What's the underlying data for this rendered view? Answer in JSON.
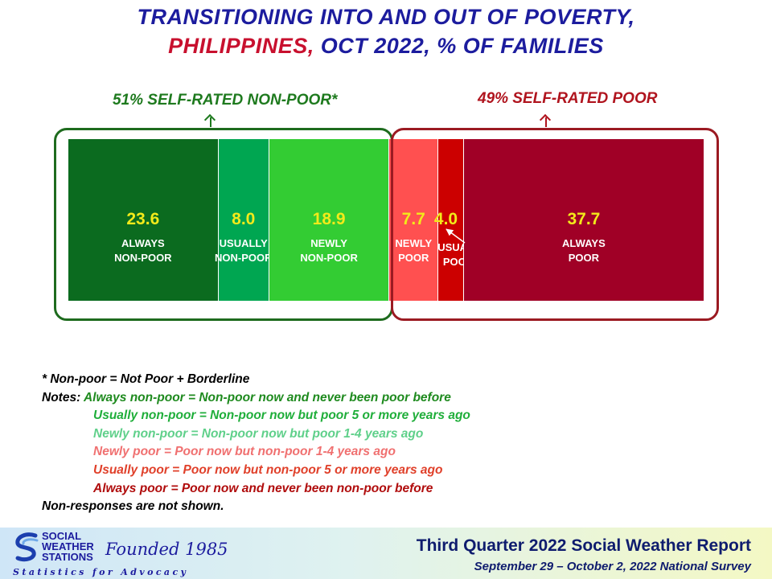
{
  "title": {
    "line1": "TRANSITIONING INTO AND OUT OF POVERTY,",
    "line2_red": "PHILIPPINES,",
    "line2_blue": "OCT 2022, % OF FAMILIES"
  },
  "groups": {
    "nonpoor_label": "51% SELF-RATED NON-POOR*",
    "poor_label": "49% SELF-RATED POOR"
  },
  "chart_data": {
    "type": "bar",
    "orientation": "horizontal-stacked-100",
    "unit": "% of families",
    "segments": [
      {
        "label": "ALWAYS\nNON-POOR",
        "value": 23.6,
        "value_label": "23.6",
        "color": "#0b6b1f"
      },
      {
        "label": "USUALLY\nNON-POOR",
        "value": 8.0,
        "value_label": "8.0",
        "color": "#00a651"
      },
      {
        "label": "NEWLY\nNON-POOR",
        "value": 18.9,
        "value_label": "18.9",
        "color": "#33cc33"
      },
      {
        "label": "NEWLY\nPOOR",
        "value": 7.7,
        "value_label": "7.7",
        "color": "#ff5050"
      },
      {
        "label": "USUALLY\nPOOR",
        "value": 4.0,
        "value_label": "4.0",
        "color": "#cc0000"
      },
      {
        "label": "ALWAYS\nPOOR",
        "value": 37.7,
        "value_label": "37.7",
        "color": "#a00026"
      }
    ]
  },
  "notes": [
    {
      "text": "* Non-poor = Not Poor + Borderline",
      "color": "#000000"
    },
    {
      "prefix": "Notes: ",
      "text": "Always non-poor = Non-poor now and never been poor before",
      "color": "#1e8a1e"
    },
    {
      "text": "Usually non-poor = Non-poor now but poor 5 or more years ago",
      "color": "#1fae3a",
      "indent": true
    },
    {
      "text": "Newly non-poor = Non-poor now but poor 1-4 years ago",
      "color": "#5fd08a",
      "indent": true
    },
    {
      "text": "Newly poor = Poor now but non-poor 1-4 years ago",
      "color": "#f07070",
      "indent": true
    },
    {
      "text": "Usually poor = Poor now but non-poor 5 or more years ago",
      "color": "#e0402a",
      "indent": true
    },
    {
      "text": "Always poor = Poor now and never been non-poor before",
      "color": "#b00c0c",
      "indent": true
    },
    {
      "text": "Non-responses are not shown.",
      "color": "#000000"
    }
  ],
  "footer": {
    "org_line1": "SOCIAL",
    "org_line2": "WEATHER",
    "org_line3": "STATIONS",
    "founded": "Founded 1985",
    "tagline": "Statistics for Advocacy",
    "report_title": "Third Quarter 2022 Social Weather Report",
    "survey_dates": "September 29 – October 2, 2022 National Survey",
    "logo_icon": "sws-swirl-logo-icon"
  }
}
